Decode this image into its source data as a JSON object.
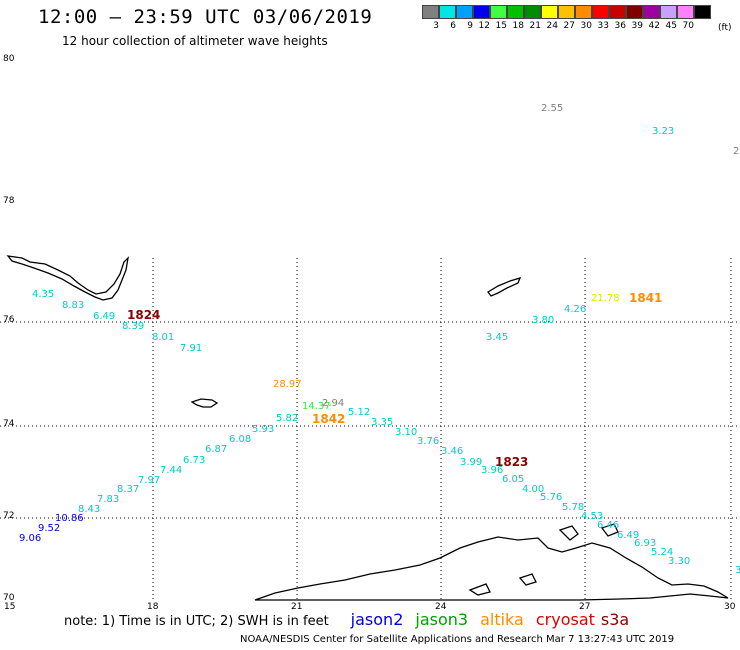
{
  "title": "12:00 – 23:59 UTC 03/06/2019",
  "subtitle": "12 hour collection of altimeter wave heights",
  "legend": {
    "unit": "(ft)",
    "entries": [
      {
        "label": "3",
        "color": "#808080"
      },
      {
        "label": "6",
        "color": "#00e6e6"
      },
      {
        "label": "9",
        "color": "#00a0ff"
      },
      {
        "label": "12",
        "color": "#0000ee"
      },
      {
        "label": "15",
        "color": "#40ff40"
      },
      {
        "label": "18",
        "color": "#00c000"
      },
      {
        "label": "21",
        "color": "#008c00"
      },
      {
        "label": "24",
        "color": "#ffff00"
      },
      {
        "label": "27",
        "color": "#ffc000"
      },
      {
        "label": "30",
        "color": "#ff8c00"
      },
      {
        "label": "33",
        "color": "#ff0000"
      },
      {
        "label": "36",
        "color": "#c80000"
      },
      {
        "label": "39",
        "color": "#800000"
      },
      {
        "label": "42",
        "color": "#a000a0"
      },
      {
        "label": "45",
        "color": "#c8a0ff"
      },
      {
        "label": "70",
        "color": "#ff80ff"
      },
      {
        "label": "",
        "color": "#000000"
      }
    ]
  },
  "map": {
    "lat_ticks": [
      "80",
      "78",
      "76",
      "74",
      "72",
      "70"
    ],
    "lon_ticks": [
      "15",
      "18",
      "21",
      "24",
      "27",
      "30"
    ],
    "wave_labels": [
      {
        "text": "2.55",
        "color": "#808080"
      },
      {
        "text": "3.23",
        "color": "#00cccc"
      },
      {
        "text": "2",
        "color": "#808080"
      },
      {
        "text": "4.35",
        "color": "#00cccc"
      },
      {
        "text": "8.83",
        "color": "#00cccc"
      },
      {
        "text": "6.49",
        "color": "#00cccc"
      },
      {
        "text": "8.39",
        "color": "#00cccc"
      },
      {
        "text": "8.01",
        "color": "#00cccc"
      },
      {
        "text": "7.91",
        "color": "#00cccc"
      },
      {
        "text": "21.78",
        "color": "#e6e600"
      },
      {
        "text": "4.26",
        "color": "#00cccc"
      },
      {
        "text": "3.80",
        "color": "#00cccc"
      },
      {
        "text": "3.45",
        "color": "#00cccc"
      },
      {
        "text": "28.97",
        "color": "#ff8c00"
      },
      {
        "text": "14.37",
        "color": "#40e040"
      },
      {
        "text": "2.94",
        "color": "#808080"
      },
      {
        "text": "5.82",
        "color": "#00cccc"
      },
      {
        "text": "5.12",
        "color": "#00cccc"
      },
      {
        "text": "5.93",
        "color": "#00cccc"
      },
      {
        "text": "3.35",
        "color": "#00cccc"
      },
      {
        "text": "3.10",
        "color": "#00cccc"
      },
      {
        "text": "6.08",
        "color": "#00cccc"
      },
      {
        "text": "3.76",
        "color": "#00cccc"
      },
      {
        "text": "6.87",
        "color": "#00cccc"
      },
      {
        "text": "3.46",
        "color": "#00cccc"
      },
      {
        "text": "6.73",
        "color": "#00cccc"
      },
      {
        "text": "3.99",
        "color": "#00cccc"
      },
      {
        "text": "3.96",
        "color": "#00cccc"
      },
      {
        "text": "7.44",
        "color": "#00cccc"
      },
      {
        "text": "7.97",
        "color": "#00cccc"
      },
      {
        "text": "6.05",
        "color": "#00cccc"
      },
      {
        "text": "8.37",
        "color": "#00cccc"
      },
      {
        "text": "4.00",
        "color": "#00cccc"
      },
      {
        "text": "7.83",
        "color": "#00cccc"
      },
      {
        "text": "5.76",
        "color": "#00cccc"
      },
      {
        "text": "8.43",
        "color": "#00cccc"
      },
      {
        "text": "5.78",
        "color": "#00cccc"
      },
      {
        "text": "10.86",
        "color": "#0000dd"
      },
      {
        "text": "4.53",
        "color": "#00cccc"
      },
      {
        "text": "9.52",
        "color": "#0000dd"
      },
      {
        "text": "6.46",
        "color": "#00cccc"
      },
      {
        "text": "9.06",
        "color": "#0000dd"
      },
      {
        "text": "6.49",
        "color": "#00cccc"
      },
      {
        "text": "6.93",
        "color": "#00cccc"
      },
      {
        "text": "5.24",
        "color": "#00cccc"
      },
      {
        "text": "3.30",
        "color": "#00cccc"
      },
      {
        "text": "3",
        "color": "#00cccc"
      }
    ],
    "time_labels": [
      {
        "text": "1824",
        "color": "#8b0000"
      },
      {
        "text": "1841",
        "color": "#ff8c00"
      },
      {
        "text": "1842",
        "color": "#ff8c00"
      },
      {
        "text": "1823",
        "color": "#8b0000"
      }
    ]
  },
  "note": {
    "text": "note: 1) Time is in UTC; 2) SWH is in feet",
    "satellites": [
      {
        "name": "jason2",
        "color": "#0000dd"
      },
      {
        "name": "jason3",
        "color": "#00a000"
      },
      {
        "name": "altika",
        "color": "#ff8c00"
      },
      {
        "name": "cryosat",
        "color": "#dd0000"
      },
      {
        "name": "s3a",
        "color": "#8b0000"
      }
    ]
  },
  "credit": "NOAA/NESDIS Center for Satellite Applications and Research    Mar  7 13:27:43 UTC 2019"
}
